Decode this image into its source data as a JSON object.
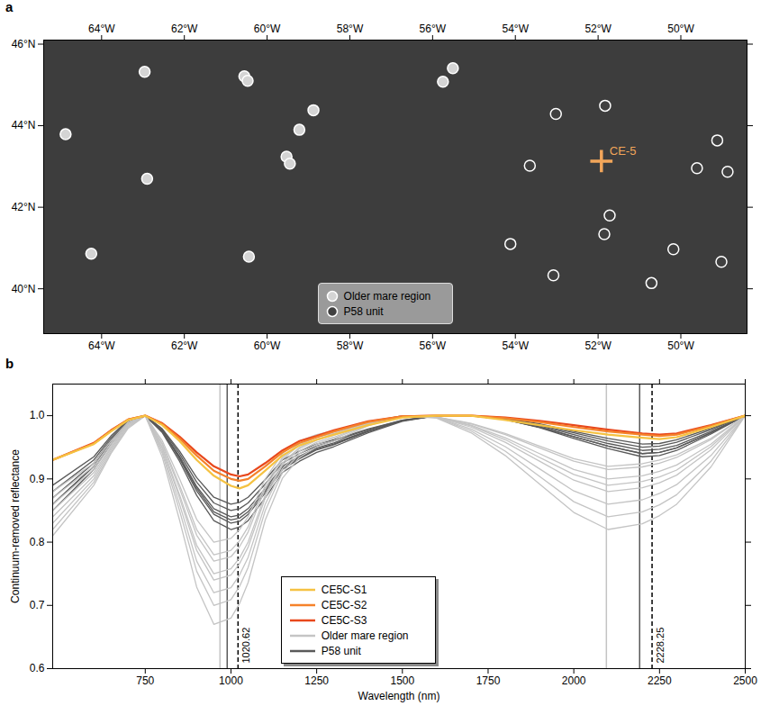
{
  "chart_data": [
    {
      "panel": "a",
      "type": "scatter",
      "xlim": [
        -65.4,
        -48.4
      ],
      "ylim": [
        38.9,
        46.1
      ],
      "xticks": [
        {
          "value": -64,
          "label": "64°W"
        },
        {
          "value": -62,
          "label": "62°W"
        },
        {
          "value": -60,
          "label": "60°W"
        },
        {
          "value": -58,
          "label": "58°W"
        },
        {
          "value": -56,
          "label": "56°W"
        },
        {
          "value": -54,
          "label": "54°W"
        },
        {
          "value": -52,
          "label": "52°W"
        },
        {
          "value": -50,
          "label": "50°W"
        }
      ],
      "yticks": [
        {
          "value": 40,
          "label": "40°N"
        },
        {
          "value": 42,
          "label": "42°N"
        },
        {
          "value": 44,
          "label": "44°N"
        },
        {
          "value": 46,
          "label": "46°N"
        }
      ],
      "legend": "bottom",
      "series": [
        {
          "name": "Older mare region",
          "color": "#d4d4d4",
          "marker": "circle",
          "x": [
            -64.87,
            -62.96,
            -60.55,
            -60.47,
            -62.9,
            -64.25,
            -60.44,
            -58.88,
            -59.22,
            -59.53,
            -59.45,
            -55.75,
            -55.51
          ],
          "y": [
            43.79,
            45.32,
            45.21,
            45.1,
            42.7,
            40.86,
            40.79,
            44.38,
            43.9,
            43.24,
            43.07,
            45.08,
            45.41
          ]
        },
        {
          "name": "P58 unit",
          "color": "#404040",
          "marker": "circle",
          "x": [
            -53.02,
            -51.83,
            -53.65,
            -51.72,
            -51.85,
            -54.12,
            -53.08,
            -50.71,
            -50.18,
            -49.12,
            -49.61,
            -48.87,
            -49.02
          ],
          "y": [
            44.29,
            44.49,
            43.02,
            41.8,
            41.34,
            41.1,
            40.33,
            40.14,
            40.97,
            43.64,
            42.96,
            42.87,
            40.66
          ]
        }
      ],
      "annotations": [
        {
          "text": "CE-5",
          "x": -51.92,
          "y": 43.13,
          "color": "#f2a65a",
          "marker": "cross"
        }
      ]
    },
    {
      "panel": "b",
      "type": "line",
      "x_label": "Wavelength (nm)",
      "y_label": "Continuum-removed reflectance",
      "x": [
        480,
        600,
        650,
        700,
        750,
        800,
        850,
        900,
        950,
        1000,
        1025,
        1050,
        1100,
        1150,
        1200,
        1250,
        1300,
        1400,
        1500,
        1600,
        1700,
        1800,
        1900,
        2000,
        2100,
        2200,
        2250,
        2300,
        2400,
        2500
      ],
      "xlim": [
        480,
        2500
      ],
      "xticks": [
        750,
        1000,
        1250,
        1500,
        1750,
        2000,
        2250,
        2500
      ],
      "ylim": [
        0.6,
        1.05
      ],
      "yticks": [
        0.6,
        0.7,
        0.8,
        0.9,
        {
          "value": 1,
          "label": "1.0"
        }
      ],
      "legend": "bottom",
      "series": [
        {
          "name": "CE5C-S1",
          "color": "#f5c242",
          "values": [
            0.93,
            0.955,
            0.975,
            0.993,
            1.0,
            0.985,
            0.96,
            0.93,
            0.905,
            0.889,
            0.885,
            0.89,
            0.913,
            0.937,
            0.953,
            0.962,
            0.97,
            0.985,
            0.997,
            1.0,
            1.0,
            0.993,
            0.985,
            0.977,
            0.97,
            0.965,
            0.963,
            0.966,
            0.982,
            1.0
          ]
        },
        {
          "name": "CE5C-S2",
          "color": "#f5822a",
          "values": [
            0.93,
            0.956,
            0.976,
            0.994,
            1.0,
            0.987,
            0.964,
            0.937,
            0.913,
            0.9,
            0.897,
            0.9,
            0.92,
            0.942,
            0.957,
            0.966,
            0.975,
            0.99,
            0.999,
            1.0,
            1.0,
            0.996,
            0.99,
            0.982,
            0.975,
            0.97,
            0.968,
            0.97,
            0.984,
            1.0
          ]
        },
        {
          "name": "CE5C-S3",
          "color": "#e8481c",
          "values": [
            0.93,
            0.957,
            0.977,
            0.994,
            1.0,
            0.988,
            0.967,
            0.942,
            0.92,
            0.907,
            0.904,
            0.907,
            0.925,
            0.945,
            0.96,
            0.968,
            0.977,
            0.991,
            0.999,
            1.0,
            1.0,
            0.997,
            0.992,
            0.985,
            0.978,
            0.972,
            0.97,
            0.972,
            0.985,
            1.0
          ]
        },
        {
          "name": "Older mare region",
          "color": "#c4c4c4",
          "values": [
            0.81,
            0.89,
            0.94,
            0.98,
            1.0,
            0.934,
            0.835,
            0.729,
            0.67,
            0.68,
            0.703,
            0.736,
            0.835,
            0.901,
            0.934,
            0.951,
            0.96,
            0.984,
            1.0,
            0.996,
            0.973,
            0.937,
            0.892,
            0.847,
            0.82,
            0.829,
            0.842,
            0.86,
            0.919,
            1.0
          ]
        },
        {
          "name": "Older mare region",
          "color": "#c4c4c4",
          "values": [
            0.82,
            0.895,
            0.942,
            0.982,
            1.0,
            0.94,
            0.85,
            0.754,
            0.7,
            0.709,
            0.73,
            0.76,
            0.85,
            0.91,
            0.94,
            0.955,
            0.964,
            0.985,
            1.0,
            0.997,
            0.976,
            0.944,
            0.904,
            0.864,
            0.84,
            0.848,
            0.859,
            0.875,
            0.928,
            1.0
          ]
        },
        {
          "name": "Older mare region",
          "color": "#c4c4c4",
          "values": [
            0.83,
            0.9,
            0.945,
            0.983,
            1.0,
            0.944,
            0.86,
            0.77,
            0.72,
            0.728,
            0.748,
            0.776,
            0.86,
            0.916,
            0.944,
            0.958,
            0.966,
            0.986,
            1.0,
            0.997,
            0.979,
            0.951,
            0.916,
            0.881,
            0.86,
            0.867,
            0.877,
            0.891,
            0.937,
            1.0
          ]
        },
        {
          "name": "Older mare region",
          "color": "#c4c4c4",
          "values": [
            0.84,
            0.905,
            0.948,
            0.985,
            1.0,
            0.948,
            0.87,
            0.787,
            0.74,
            0.748,
            0.766,
            0.792,
            0.87,
            0.922,
            0.948,
            0.961,
            0.969,
            0.987,
            1.0,
            0.998,
            0.982,
            0.958,
            0.928,
            0.898,
            0.88,
            0.886,
            0.894,
            0.906,
            0.946,
            1.0
          ]
        },
        {
          "name": "Older mare region",
          "color": "#c4c4c4",
          "values": [
            0.85,
            0.91,
            0.95,
            0.986,
            1.0,
            0.95,
            0.875,
            0.795,
            0.75,
            0.758,
            0.775,
            0.8,
            0.875,
            0.925,
            0.95,
            0.963,
            0.97,
            0.988,
            1.0,
            0.998,
            0.984,
            0.962,
            0.934,
            0.907,
            0.89,
            0.896,
            0.903,
            0.914,
            0.951,
            1.0
          ]
        },
        {
          "name": "Older mare region",
          "color": "#c4c4c4",
          "values": [
            0.86,
            0.915,
            0.953,
            0.987,
            1.0,
            0.954,
            0.885,
            0.811,
            0.77,
            0.777,
            0.793,
            0.816,
            0.885,
            0.931,
            0.954,
            0.966,
            0.972,
            0.989,
            1.0,
            0.998,
            0.985,
            0.965,
            0.94,
            0.915,
            0.9,
            0.905,
            0.912,
            0.922,
            0.955,
            1.0
          ]
        },
        {
          "name": "Older mare region",
          "color": "#c4c4c4",
          "values": [
            0.87,
            0.92,
            0.956,
            0.988,
            1.0,
            0.956,
            0.89,
            0.82,
            0.78,
            0.787,
            0.802,
            0.824,
            0.89,
            0.934,
            0.956,
            0.967,
            0.974,
            0.989,
            1.0,
            0.998,
            0.987,
            0.97,
            0.949,
            0.928,
            0.915,
            0.919,
            0.925,
            0.934,
            0.962,
            1.0
          ]
        },
        {
          "name": "Older mare region",
          "color": "#c4c4c4",
          "values": [
            0.88,
            0.925,
            0.96,
            0.99,
            1.0,
            0.96,
            0.9,
            0.836,
            0.8,
            0.806,
            0.82,
            0.84,
            0.9,
            0.94,
            0.96,
            0.97,
            0.976,
            0.99,
            1.0,
            0.998,
            0.988,
            0.972,
            0.952,
            0.932,
            0.92,
            0.924,
            0.93,
            0.938,
            0.964,
            1.0
          ]
        },
        {
          "name": "P58 unit",
          "color": "#5a5a5a",
          "values": [
            0.86,
            0.92,
            0.96,
            0.99,
            1.0,
            0.973,
            0.928,
            0.874,
            0.834,
            0.82,
            0.824,
            0.834,
            0.87,
            0.91,
            0.928,
            0.942,
            0.951,
            0.973,
            0.991,
            1.0,
            1.0,
            0.994,
            0.981,
            0.964,
            0.948,
            0.935,
            0.937,
            0.945,
            0.971,
            1.0
          ]
        },
        {
          "name": "P58 unit",
          "color": "#5a5a5a",
          "values": [
            0.85,
            0.915,
            0.955,
            0.988,
            1.0,
            0.975,
            0.932,
            0.881,
            0.844,
            0.83,
            0.833,
            0.844,
            0.878,
            0.915,
            0.932,
            0.946,
            0.954,
            0.975,
            0.992,
            1.0,
            1.0,
            0.994,
            0.982,
            0.967,
            0.952,
            0.94,
            0.942,
            0.949,
            0.973,
            1.0
          ]
        },
        {
          "name": "P58 unit",
          "color": "#5a5a5a",
          "values": [
            0.87,
            0.925,
            0.962,
            0.99,
            1.0,
            0.976,
            0.936,
            0.888,
            0.853,
            0.84,
            0.843,
            0.853,
            0.885,
            0.92,
            0.936,
            0.949,
            0.957,
            0.976,
            0.992,
            1.0,
            1.0,
            0.995,
            0.984,
            0.97,
            0.956,
            0.945,
            0.947,
            0.953,
            0.975,
            1.0
          ]
        },
        {
          "name": "P58 unit",
          "color": "#5a5a5a",
          "values": [
            0.88,
            0.93,
            0.965,
            0.992,
            1.0,
            0.978,
            0.94,
            0.895,
            0.862,
            0.85,
            0.853,
            0.862,
            0.892,
            0.925,
            0.94,
            0.952,
            0.96,
            0.978,
            0.993,
            1.0,
            1.0,
            0.995,
            0.985,
            0.973,
            0.96,
            0.95,
            0.952,
            0.958,
            0.978,
            1.0
          ]
        },
        {
          "name": "P58 unit",
          "color": "#5a5a5a",
          "values": [
            0.89,
            0.935,
            0.968,
            0.993,
            1.0,
            0.979,
            0.944,
            0.902,
            0.871,
            0.86,
            0.863,
            0.871,
            0.899,
            0.93,
            0.944,
            0.955,
            0.962,
            0.979,
            0.993,
            1.0,
            1.0,
            0.994,
            0.982,
            0.967,
            0.952,
            0.94,
            0.942,
            0.949,
            0.973,
            1.0
          ]
        },
        {
          "name": "P58 unit",
          "color": "#5a5a5a",
          "values": [
            0.86,
            0.92,
            0.96,
            0.99,
            1.0,
            0.975,
            0.934,
            0.885,
            0.848,
            0.835,
            0.838,
            0.848,
            0.881,
            0.918,
            0.934,
            0.947,
            0.955,
            0.975,
            0.992,
            1.0,
            1.0,
            0.996,
            0.987,
            0.975,
            0.964,
            0.955,
            0.956,
            0.962,
            0.98,
            1.0
          ]
        }
      ],
      "vlines": [
        {
          "x": 968,
          "color": "#c4c4c4",
          "line_style": "solid"
        },
        {
          "x": 989,
          "color": "#5a5a5a",
          "line_style": "solid"
        },
        {
          "x": 1020.62,
          "color": "#000000",
          "line_style": "dashed",
          "data_labels": true
        },
        {
          "x": 2095,
          "color": "#c4c4c4",
          "line_style": "solid"
        },
        {
          "x": 2192,
          "color": "#5a5a5a",
          "line_style": "solid"
        },
        {
          "x": 2228.25,
          "color": "#000000",
          "line_style": "dashed",
          "data_labels": true
        }
      ]
    }
  ]
}
